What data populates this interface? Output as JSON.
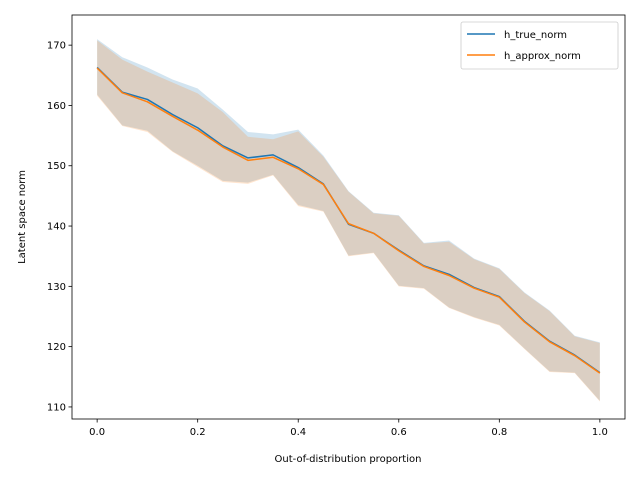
{
  "chart_data": {
    "type": "line",
    "title": "",
    "xlabel": "Out-of-distribution proportion",
    "ylabel": "Latent space norm",
    "xlim": [
      -0.05,
      1.05
    ],
    "ylim": [
      108,
      175
    ],
    "x_ticks": [
      0.0,
      0.2,
      0.4,
      0.6,
      0.8,
      1.0
    ],
    "x_tick_labels": [
      "0.0",
      "0.2",
      "0.4",
      "0.6",
      "0.8",
      "1.0"
    ],
    "y_ticks": [
      110,
      120,
      130,
      140,
      150,
      160,
      170
    ],
    "y_tick_labels": [
      "110",
      "120",
      "130",
      "140",
      "150",
      "160",
      "170"
    ],
    "grid": false,
    "legend_position": "top-right",
    "x": [
      0.0,
      0.05,
      0.1,
      0.15,
      0.2,
      0.25,
      0.3,
      0.35,
      0.4,
      0.45,
      0.5,
      0.55,
      0.6,
      0.65,
      0.7,
      0.75,
      0.8,
      0.85,
      0.9,
      0.95,
      1.0
    ],
    "series": [
      {
        "name": "h_true_norm",
        "color": "#1f77b4",
        "band_color": "#aec7e8",
        "values": [
          166.3,
          162.2,
          161.0,
          158.5,
          156.3,
          153.3,
          151.3,
          151.8,
          149.7,
          147.0,
          140.3,
          138.8,
          136.0,
          133.4,
          132.0,
          129.8,
          128.3,
          124.2,
          120.9,
          118.6,
          115.7
        ],
        "lower": [
          161.8,
          156.7,
          155.8,
          152.4,
          150.0,
          147.5,
          147.2,
          148.5,
          143.5,
          142.5,
          135.1,
          135.6,
          130.1,
          129.7,
          126.5,
          124.9,
          123.6,
          119.7,
          115.9,
          115.7,
          111.0
        ],
        "upper": [
          171.0,
          168.0,
          166.3,
          164.3,
          162.8,
          159.3,
          155.6,
          155.2,
          156.0,
          151.7,
          145.8,
          142.2,
          141.8,
          137.2,
          137.6,
          134.6,
          133.0,
          129.0,
          126.0,
          121.8,
          120.7
        ]
      },
      {
        "name": "h_approx_norm",
        "color": "#ff7f0e",
        "band_color": "#ffbb78",
        "values": [
          166.2,
          162.1,
          160.6,
          158.2,
          155.9,
          153.1,
          150.9,
          151.4,
          149.5,
          146.9,
          140.4,
          138.8,
          135.9,
          133.3,
          131.8,
          129.7,
          128.2,
          124.1,
          120.8,
          118.5,
          115.6
        ],
        "lower": [
          161.6,
          156.6,
          155.6,
          152.3,
          149.8,
          147.3,
          147.0,
          148.4,
          143.3,
          142.4,
          135.0,
          135.5,
          130.0,
          129.6,
          126.4,
          124.8,
          123.5,
          119.6,
          115.8,
          115.6,
          110.9
        ],
        "upper": [
          170.8,
          167.6,
          165.6,
          163.8,
          162.0,
          158.9,
          154.8,
          154.4,
          155.7,
          151.5,
          145.7,
          142.1,
          141.7,
          137.1,
          137.4,
          134.5,
          132.9,
          128.9,
          125.9,
          121.7,
          120.6
        ]
      }
    ]
  }
}
